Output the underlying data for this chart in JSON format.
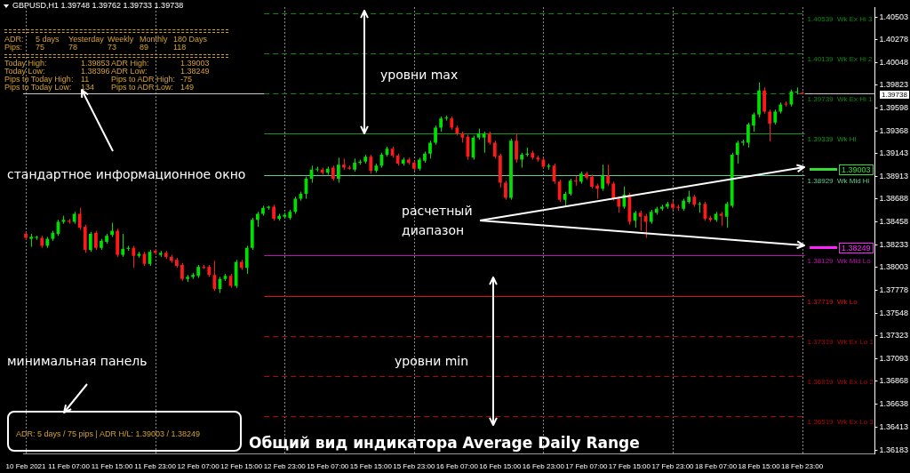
{
  "chart_data": {
    "type": "candlestick",
    "title": "GBPUSD,H1 1.39748 1.39762 1.39733 1.39738",
    "categories": [
      "10 Feb 2021",
      null,
      null,
      null,
      null,
      null,
      null,
      null,
      "11 Feb 07:00",
      null,
      null,
      null,
      null,
      null,
      null,
      null,
      "11 Feb 15:00",
      null,
      null,
      null,
      null,
      null,
      null,
      null,
      "11 Feb 23:00",
      null,
      null,
      null,
      null,
      null,
      null,
      null,
      "12 Feb 07:00",
      null,
      null,
      null,
      null,
      null,
      null,
      null,
      "12 Feb 15:00",
      null,
      null,
      null,
      null,
      null,
      null,
      null,
      "12 Feb 23:00",
      null,
      null,
      null,
      null,
      null,
      null,
      null,
      "15 Feb 07:00",
      null,
      null,
      null,
      null,
      null,
      null,
      null,
      "15 Feb 15:00",
      null,
      null,
      null,
      null,
      null,
      null,
      null,
      "15 Feb 23:00",
      null,
      null,
      null,
      null,
      null,
      null,
      null,
      "16 Feb 07:00",
      null,
      null,
      null,
      null,
      null,
      null,
      null,
      "16 Feb 15:00",
      null,
      null,
      null,
      null,
      null,
      null,
      null,
      "16 Feb 23:00",
      null,
      null,
      null,
      null,
      null,
      null,
      null,
      "17 Feb 07:00",
      null,
      null,
      null,
      null,
      null,
      null,
      null,
      "17 Feb 15:00",
      null,
      null,
      null,
      null,
      null,
      null,
      null,
      "17 Feb 23:00",
      null,
      null,
      null,
      null,
      null,
      null,
      null,
      "18 Feb 07:00",
      null,
      null,
      null,
      null,
      null,
      null,
      null,
      "18 Feb 15:00",
      null,
      null,
      null,
      null,
      null,
      null,
      null,
      "18 Feb 23:00",
      null,
      null,
      null,
      null,
      null,
      null,
      null,
      null,
      null,
      null,
      null,
      null,
      null
    ],
    "ohlc": [
      [
        1.3834,
        1.3836,
        1.3828,
        1.383
      ],
      [
        1.3829,
        1.3834,
        1.3821,
        1.3831
      ],
      [
        1.383,
        1.3832,
        1.3828,
        1.3831
      ],
      [
        1.383,
        1.3832,
        1.382,
        1.3822
      ],
      [
        1.3822,
        1.3831,
        1.382,
        1.3829
      ],
      [
        1.3829,
        1.3837,
        1.3827,
        1.3835
      ],
      [
        1.3834,
        1.3848,
        1.3832,
        1.3846
      ],
      [
        1.3846,
        1.3852,
        1.3844,
        1.3848
      ],
      [
        1.3847,
        1.3849,
        1.3844,
        1.3846
      ],
      [
        1.3846,
        1.3856,
        1.3844,
        1.3854
      ],
      [
        1.3854,
        1.386,
        1.3838,
        1.384
      ],
      [
        1.3841,
        1.3843,
        1.3815,
        1.3818
      ],
      [
        1.3818,
        1.3836,
        1.3816,
        1.3834
      ],
      [
        1.3835,
        1.3837,
        1.3818,
        1.382
      ],
      [
        1.382,
        1.3829,
        1.3818,
        1.3827
      ],
      [
        1.3826,
        1.3834,
        1.3824,
        1.3832
      ],
      [
        1.3833,
        1.3845,
        1.3831,
        1.3837
      ],
      [
        1.3837,
        1.3839,
        1.3811,
        1.3813
      ],
      [
        1.3813,
        1.3834,
        1.3811,
        1.3819
      ],
      [
        1.3819,
        1.3822,
        1.3817,
        1.382
      ],
      [
        1.382,
        1.3822,
        1.38,
        1.3812
      ],
      [
        1.3812,
        1.3816,
        1.381,
        1.3814
      ],
      [
        1.3814,
        1.3816,
        1.3802,
        1.3804
      ],
      [
        1.3804,
        1.3818,
        1.3802,
        1.3816
      ],
      [
        1.3817,
        1.3819,
        1.3813,
        1.3815
      ],
      [
        1.3813,
        1.3817,
        1.3811,
        1.3815
      ],
      [
        1.3815,
        1.3817,
        1.3809,
        1.3811
      ],
      [
        1.3811,
        1.3813,
        1.3805,
        1.3807
      ],
      [
        1.3808,
        1.381,
        1.38,
        1.3802
      ],
      [
        1.3803,
        1.3805,
        1.3787,
        1.3789
      ],
      [
        1.3789,
        1.3793,
        1.3786,
        1.3791
      ],
      [
        1.3791,
        1.3795,
        1.3789,
        1.3793
      ],
      [
        1.3792,
        1.3803,
        1.379,
        1.3801
      ],
      [
        1.3801,
        1.3803,
        1.3799,
        1.38
      ],
      [
        1.3801,
        1.3803,
        1.3791,
        1.3793
      ],
      [
        1.3793,
        1.3807,
        1.3777,
        1.3779
      ],
      [
        1.3779,
        1.3791,
        1.3775,
        1.3789
      ],
      [
        1.3789,
        1.3794,
        1.3787,
        1.3792
      ],
      [
        1.3792,
        1.3794,
        1.378,
        1.3782
      ],
      [
        1.3782,
        1.3808,
        1.378,
        1.3806
      ],
      [
        1.3806,
        1.3808,
        1.3798,
        1.38
      ],
      [
        1.38,
        1.3822,
        1.3794,
        1.382
      ],
      [
        1.382,
        1.385,
        1.3818,
        1.3848
      ],
      [
        1.3848,
        1.3856,
        1.3841,
        1.3854
      ],
      [
        1.3854,
        1.3862,
        1.3852,
        1.386
      ],
      [
        1.386,
        1.3862,
        1.3858,
        1.3861
      ],
      [
        1.3861,
        1.3863,
        1.3847,
        1.3849
      ],
      [
        1.3849,
        1.3854,
        1.3847,
        1.3852
      ],
      [
        1.3851,
        1.3855,
        1.3849,
        1.3853
      ],
      [
        1.385,
        1.3858,
        1.3848,
        1.3856
      ],
      [
        1.3856,
        1.3871,
        1.3854,
        1.3869
      ],
      [
        1.3869,
        1.3876,
        1.3867,
        1.3874
      ],
      [
        1.3874,
        1.3891,
        1.3869,
        1.3889
      ],
      [
        1.3889,
        1.3902,
        1.3885,
        1.3898
      ],
      [
        1.3898,
        1.3901,
        1.3896,
        1.3898
      ],
      [
        1.3898,
        1.39,
        1.3893,
        1.3895
      ],
      [
        1.3895,
        1.3901,
        1.3893,
        1.3899
      ],
      [
        1.39,
        1.3902,
        1.3887,
        1.3889
      ],
      [
        1.3889,
        1.391,
        1.3885,
        1.3903
      ],
      [
        1.3903,
        1.3909,
        1.3898,
        1.39
      ],
      [
        1.39,
        1.3902,
        1.3898,
        1.3899
      ],
      [
        1.3898,
        1.3909,
        1.3896,
        1.3905
      ],
      [
        1.3905,
        1.3908,
        1.3903,
        1.3906
      ],
      [
        1.3906,
        1.3913,
        1.3904,
        1.3911
      ],
      [
        1.3911,
        1.3913,
        1.3894,
        1.3897
      ],
      [
        1.3897,
        1.3904,
        1.3895,
        1.3902
      ],
      [
        1.3902,
        1.3915,
        1.39,
        1.3913
      ],
      [
        1.3913,
        1.3921,
        1.3911,
        1.3919
      ],
      [
        1.3919,
        1.3921,
        1.391,
        1.3912
      ],
      [
        1.3912,
        1.3914,
        1.3902,
        1.3904
      ],
      [
        1.3904,
        1.391,
        1.3902,
        1.3908
      ],
      [
        1.3908,
        1.391,
        1.3903,
        1.3905
      ],
      [
        1.3905,
        1.3907,
        1.3897,
        1.3899
      ],
      [
        1.3899,
        1.391,
        1.3897,
        1.3908
      ],
      [
        1.3907,
        1.3916,
        1.3905,
        1.3914
      ],
      [
        1.3914,
        1.3927,
        1.3909,
        1.3925
      ],
      [
        1.3925,
        1.3942,
        1.3923,
        1.394
      ],
      [
        1.394,
        1.3951,
        1.3936,
        1.3949
      ],
      [
        1.3949,
        1.3952,
        1.3947,
        1.395
      ],
      [
        1.3949,
        1.3951,
        1.3938,
        1.394
      ],
      [
        1.394,
        1.3942,
        1.3932,
        1.3934
      ],
      [
        1.3934,
        1.3936,
        1.3925,
        1.393
      ],
      [
        1.3931,
        1.3933,
        1.3908,
        1.3911
      ],
      [
        1.391,
        1.3932,
        1.3908,
        1.393
      ],
      [
        1.393,
        1.3939,
        1.3928,
        1.3934
      ],
      [
        1.393,
        1.3936,
        1.3915,
        1.3934
      ],
      [
        1.3934,
        1.3936,
        1.3923,
        1.3925
      ],
      [
        1.3925,
        1.3927,
        1.3909,
        1.3911
      ],
      [
        1.3912,
        1.3914,
        1.388,
        1.3885
      ],
      [
        1.3885,
        1.3887,
        1.3868,
        1.387
      ],
      [
        1.387,
        1.3929,
        1.3868,
        1.3927
      ],
      [
        1.3927,
        1.3934,
        1.3905,
        1.3908
      ],
      [
        1.3908,
        1.3915,
        1.39,
        1.3913
      ],
      [
        1.3913,
        1.392,
        1.3911,
        1.3914
      ],
      [
        1.3915,
        1.3917,
        1.3908,
        1.391
      ],
      [
        1.391,
        1.3912,
        1.3906,
        1.3908
      ],
      [
        1.3908,
        1.391,
        1.3899,
        1.3901
      ],
      [
        1.3901,
        1.3904,
        1.3898,
        1.3902
      ],
      [
        1.3902,
        1.3904,
        1.3884,
        1.3886
      ],
      [
        1.3886,
        1.3888,
        1.3866,
        1.3868
      ],
      [
        1.3868,
        1.3876,
        1.3862,
        1.3874
      ],
      [
        1.3874,
        1.3889,
        1.3872,
        1.3887
      ],
      [
        1.3887,
        1.3892,
        1.3882,
        1.3886
      ],
      [
        1.3886,
        1.3896,
        1.3884,
        1.3894
      ],
      [
        1.3894,
        1.3896,
        1.3888,
        1.389
      ],
      [
        1.3891,
        1.3893,
        1.3879,
        1.3881
      ],
      [
        1.3882,
        1.3884,
        1.3869,
        1.3879
      ],
      [
        1.3879,
        1.3903,
        1.3877,
        1.3892
      ],
      [
        1.3892,
        1.3903,
        1.3882,
        1.3884
      ],
      [
        1.3884,
        1.3886,
        1.3867,
        1.3869
      ],
      [
        1.3869,
        1.3871,
        1.3855,
        1.3861
      ],
      [
        1.3861,
        1.3881,
        1.3859,
        1.3873
      ],
      [
        1.3873,
        1.3875,
        1.3843,
        1.3846
      ],
      [
        1.3847,
        1.3857,
        1.384,
        1.3855
      ],
      [
        1.3855,
        1.3857,
        1.3837,
        1.3851
      ],
      [
        1.3852,
        1.3854,
        1.383,
        1.3846
      ],
      [
        1.3846,
        1.3858,
        1.3844,
        1.3856
      ],
      [
        1.3855,
        1.3861,
        1.3853,
        1.3859
      ],
      [
        1.3859,
        1.3863,
        1.3857,
        1.3861
      ],
      [
        1.3861,
        1.3866,
        1.3859,
        1.3864
      ],
      [
        1.3864,
        1.3867,
        1.3858,
        1.386
      ],
      [
        1.3861,
        1.3863,
        1.3857,
        1.386
      ],
      [
        1.3859,
        1.3869,
        1.3857,
        1.3867
      ],
      [
        1.3866,
        1.3877,
        1.3864,
        1.3871
      ],
      [
        1.3871,
        1.3873,
        1.3861,
        1.3863
      ],
      [
        1.3863,
        1.3866,
        1.3855,
        1.3864
      ],
      [
        1.3864,
        1.3866,
        1.3847,
        1.3849
      ],
      [
        1.385,
        1.3852,
        1.3846,
        1.3848
      ],
      [
        1.3848,
        1.3856,
        1.3846,
        1.3854
      ],
      [
        1.3854,
        1.3856,
        1.3842,
        1.3852
      ],
      [
        1.3851,
        1.3866,
        1.384,
        1.3864
      ],
      [
        1.3862,
        1.3915,
        1.386,
        1.3913
      ],
      [
        1.3913,
        1.3927,
        1.3904,
        1.3925
      ],
      [
        1.3925,
        1.3928,
        1.3922,
        1.3926
      ],
      [
        1.3925,
        1.3945,
        1.392,
        1.3943
      ],
      [
        1.3942,
        1.3955,
        1.3936,
        1.3953
      ],
      [
        1.3953,
        1.3985,
        1.395,
        1.3977
      ],
      [
        1.3977,
        1.398,
        1.3954,
        1.3956
      ],
      [
        1.3956,
        1.3958,
        1.3926,
        1.3944
      ],
      [
        1.3945,
        1.3958,
        1.3943,
        1.3956
      ],
      [
        1.3956,
        1.3965,
        1.3954,
        1.3963
      ],
      [
        1.3964,
        1.3966,
        1.3961,
        1.3963
      ],
      [
        1.3963,
        1.3978,
        1.3961,
        1.3976
      ],
      [
        1.3975,
        1.398,
        1.3973,
        1.3976
      ],
      [
        1.39748,
        1.39762,
        1.39733,
        1.39738
      ],
      null,
      null,
      null,
      null,
      null,
      null,
      null,
      null,
      null,
      null,
      null,
      null,
      null
    ],
    "ylim": [
      1.36145,
      1.40602
    ],
    "yticks": [
      1.40503,
      1.40278,
      1.40048,
      1.39823,
      1.39598,
      1.39368,
      1.39143,
      1.38913,
      1.38688,
      1.38458,
      1.38233,
      1.38003,
      1.37778,
      1.37548,
      1.37323,
      1.37093,
      1.36868,
      1.36638,
      1.36413,
      1.36183
    ],
    "grid": "x",
    "legend": false,
    "ref_lines": [
      {
        "axis": "y",
        "value": 1.40539,
        "label": "1.40539  Wk Ex Hi 3",
        "color": "#0a8a0a",
        "line_style": "dashed"
      },
      {
        "axis": "y",
        "value": 1.40139,
        "label": "1.40139  Wk Ex Hi 2",
        "color": "#0a8a0a",
        "line_style": "dashed"
      },
      {
        "axis": "y",
        "value": 1.39739,
        "label": "1.39739  Wk Ex Hi 1",
        "color": "#0a8a0a",
        "line_style": "dashed"
      },
      {
        "axis": "y",
        "value": 1.39339,
        "label": "1.39339  Wk Hi",
        "color": "#119911",
        "line_style": "solid"
      },
      {
        "axis": "y",
        "value": 1.38929,
        "label": "1.38929  Wk Mid Hi",
        "color": "#5fcf8f",
        "line_style": "solid"
      },
      {
        "axis": "y",
        "value": 1.38129,
        "label": "1.38129  Wk Mid Lo",
        "color": "#c010b0",
        "line_style": "solid"
      },
      {
        "axis": "y",
        "value": 1.37719,
        "label": "1.37719  Wk Lo",
        "color": "#e01010",
        "line_style": "solid"
      },
      {
        "axis": "y",
        "value": 1.37319,
        "label": "1.37319  Wk Ex Lo 1",
        "color": "#b00808",
        "line_style": "dashed"
      },
      {
        "axis": "y",
        "value": 1.36919,
        "label": "1.36919  Wk Ex Lo 2",
        "color": "#b00808",
        "line_style": "dashed"
      },
      {
        "axis": "y",
        "value": 1.36519,
        "label": "1.36519  Wk Ex Lo 3",
        "color": "#b00808",
        "line_style": "dashed"
      },
      {
        "axis": "y",
        "value": 1.39738,
        "color": "#c8c8c8",
        "line_style": "solid"
      }
    ],
    "annotations": [
      "ADR:",
      "5 days",
      "Yesterday",
      "Weekly",
      "Monthly",
      "180 Days",
      "Pips:",
      "75",
      "78",
      "73",
      "89",
      "118",
      "Today High:",
      "1.39853",
      "ADR High:",
      "1.39003",
      "Today Low:",
      "1.38396",
      "ADR Low:",
      "1.38249",
      "Pips to Today High:",
      "11",
      "Pips to ADR High:",
      "-75",
      "Pips to Today Low:",
      "134",
      "Pips to ADR Low:",
      "149",
      "уровни max",
      "стандартное информационное окно",
      "расчетный диапазон",
      "уровни min",
      "минимальная панель",
      "ADR: 5 days / 75 pips | ADR H/L: 1.39003 / 1.38249",
      "Общий вид индикатора Average Daily Range",
      "1.39003",
      "1.38249",
      "1.39738"
    ]
  }
}
